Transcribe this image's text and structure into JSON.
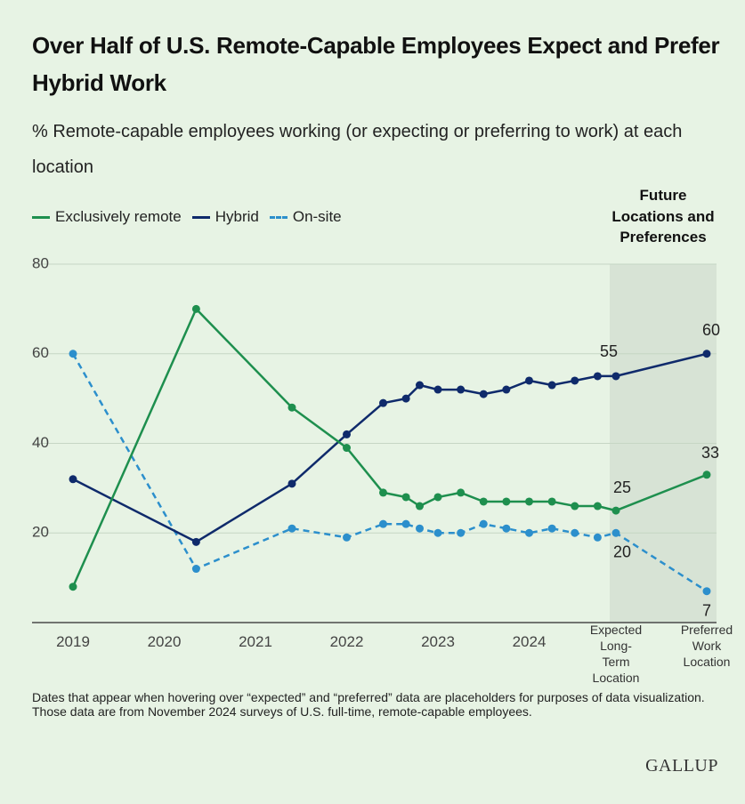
{
  "title": "Over Half of U.S. Remote-Capable Employees Expect and Prefer Hybrid Work",
  "subtitle": "% Remote-capable employees working (or expecting or preferring to work) at each location",
  "future_label": "Future Locations and Preferences",
  "footnote": "Dates that appear when hovering over “expected” and “preferred” data are placeholders for purposes of data visualization. Those data are from November 2024 surveys of U.S. full-time, remote-capable employees.",
  "brand": "GALLUP",
  "colors": {
    "remote": "#1e8f4e",
    "hybrid": "#0f2a6b",
    "onsite": "#2c8fcc",
    "shade": "#d7e3d5",
    "grid": "#c6d6c4",
    "axis": "#4a4a4a"
  },
  "chart_data": {
    "type": "line",
    "y_ticks": [
      20,
      40,
      60,
      80
    ],
    "ylim": [
      0,
      80
    ],
    "x_ticks": [
      "2019",
      "2020",
      "2021",
      "2022",
      "2023",
      "2024"
    ],
    "future_categories": [
      "Expected Long-Term Location",
      "Preferred Work Location"
    ],
    "x_year_range": [
      2019,
      2025
    ],
    "series": [
      {
        "name": "Exclusively remote",
        "key": "remote",
        "dashed": false,
        "x": [
          2019.0,
          2020.35,
          2021.4,
          2022.0,
          2022.4,
          2022.65,
          2022.8,
          2023.0,
          2023.25,
          2023.5,
          2023.75,
          2024.0,
          2024.25,
          2024.5,
          2024.75
        ],
        "values": [
          8,
          70,
          48,
          39,
          29,
          28,
          26,
          28,
          29,
          27,
          27,
          27,
          27,
          26,
          26
        ],
        "future": [
          25,
          33
        ]
      },
      {
        "name": "Hybrid",
        "key": "hybrid",
        "dashed": false,
        "x": [
          2019.0,
          2020.35,
          2021.4,
          2022.0,
          2022.4,
          2022.65,
          2022.8,
          2023.0,
          2023.25,
          2023.5,
          2023.75,
          2024.0,
          2024.25,
          2024.5,
          2024.75
        ],
        "values": [
          32,
          18,
          31,
          42,
          49,
          50,
          53,
          52,
          52,
          51,
          52,
          54,
          53,
          54,
          55
        ],
        "future": [
          55,
          60
        ]
      },
      {
        "name": "On-site",
        "key": "onsite",
        "dashed": true,
        "x": [
          2019.0,
          2020.35,
          2021.4,
          2022.0,
          2022.4,
          2022.65,
          2022.8,
          2023.0,
          2023.25,
          2023.5,
          2023.75,
          2024.0,
          2024.25,
          2024.5,
          2024.75
        ],
        "values": [
          60,
          12,
          21,
          19,
          22,
          22,
          21,
          20,
          20,
          22,
          21,
          20,
          21,
          20,
          19
        ],
        "future": [
          20,
          7
        ]
      }
    ],
    "future_labels": [
      {
        "series": "hybrid",
        "index": 0,
        "text": "55"
      },
      {
        "series": "hybrid",
        "index": 1,
        "text": "60"
      },
      {
        "series": "remote",
        "index": 0,
        "text": "25"
      },
      {
        "series": "remote",
        "index": 1,
        "text": "33"
      },
      {
        "series": "onsite",
        "index": 0,
        "text": "20"
      },
      {
        "series": "onsite",
        "index": 1,
        "text": "7"
      }
    ]
  }
}
